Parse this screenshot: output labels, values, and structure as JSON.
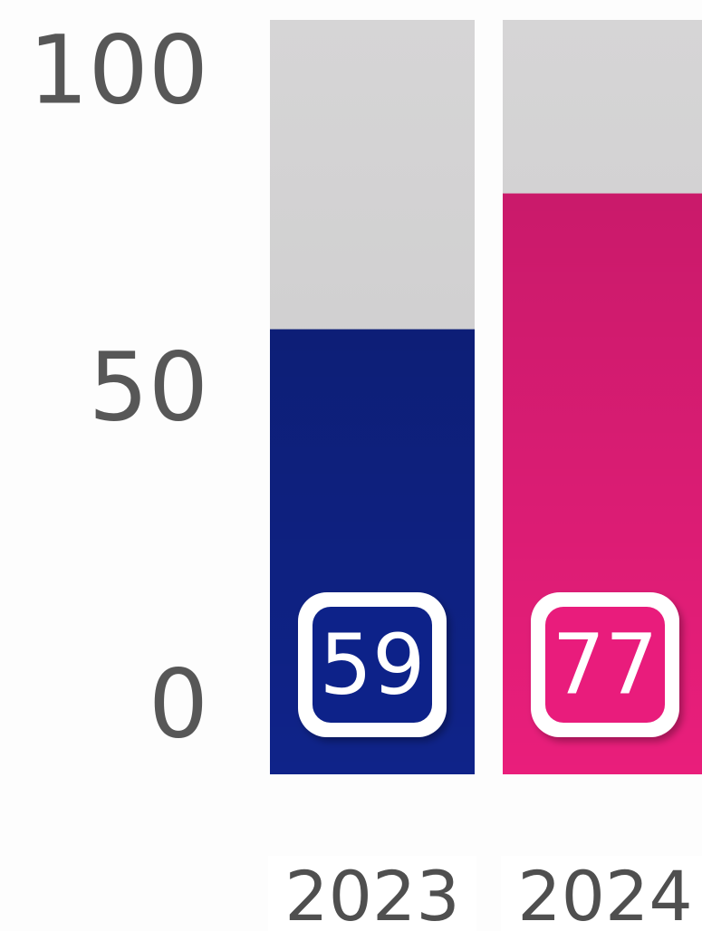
{
  "chart_data": {
    "type": "bar",
    "categories": [
      "2023",
      "2024"
    ],
    "values": [
      59,
      77
    ],
    "colors": [
      "#0f2389",
      "#e91e7b"
    ],
    "ylim": [
      0,
      100
    ],
    "yticks": [
      0,
      50,
      100
    ]
  }
}
